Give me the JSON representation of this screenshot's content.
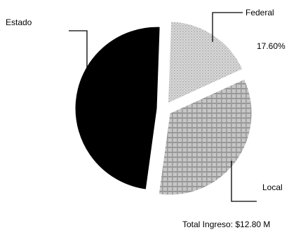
{
  "chart_data": {
    "type": "pie",
    "title": "",
    "slices": [
      {
        "label": "Federal",
        "value": 17.6,
        "value_label": "17.60%",
        "color": "#cfcfcf",
        "pattern": "stipple"
      },
      {
        "label": "Local",
        "value": 34.0,
        "value_label": "",
        "color": "#b9b9b9",
        "pattern": "grid"
      },
      {
        "label": "Estado",
        "value": 48.4,
        "value_label": "",
        "color": "#000000",
        "pattern": "solid"
      }
    ],
    "footer": "Total Ingreso:  $12.80 M",
    "legend": "none",
    "exploded": true
  }
}
